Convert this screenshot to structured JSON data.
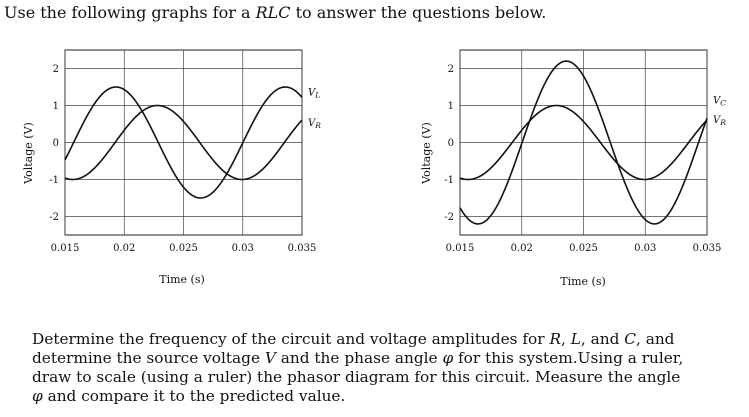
{
  "intro": {
    "before": "Use the following graphs for a ",
    "rlc": "RLC",
    "after": " to answer the questions below."
  },
  "chart_data": [
    {
      "type": "line",
      "title": "",
      "xlabel": "Time (s)",
      "ylabel": "Voltage (V)",
      "xlim": [
        0.015,
        0.035
      ],
      "ylim": [
        -2.5,
        2.5
      ],
      "xticks": [
        "0.015",
        "0.02",
        "0.025",
        "0.03",
        "0.035"
      ],
      "yticks": [
        "2",
        "1",
        "0",
        "-1",
        "-2"
      ],
      "grid": true,
      "series": [
        {
          "name": "VL",
          "amplitude": 1.5,
          "frequency": 70,
          "peak_time": 0.0193
        },
        {
          "name": "VR",
          "amplitude": 1.0,
          "frequency": 70,
          "peak_time": 0.0228
        }
      ]
    },
    {
      "type": "line",
      "title": "",
      "xlabel": "Time (s)",
      "ylabel": "Voltage (V)",
      "xlim": [
        0.015,
        0.035
      ],
      "ylim": [
        -2.5,
        2.5
      ],
      "xticks": [
        "0.015",
        "0.02",
        "0.025",
        "0.03",
        "0.035"
      ],
      "yticks": [
        "2",
        "1",
        "0",
        "-1",
        "-2"
      ],
      "grid": true,
      "series": [
        {
          "name": "VC",
          "amplitude": 2.2,
          "frequency": 70,
          "peak_time": 0.0236
        },
        {
          "name": "VR",
          "amplitude": 1.0,
          "frequency": 70,
          "peak_time": 0.0228
        }
      ]
    }
  ],
  "question": {
    "line1_a": "Determine the frequency of the circuit and voltage amplitudes for ",
    "R": "R",
    "sep1": ", ",
    "L": "L",
    "sep2": ", and ",
    "C": "C",
    "line1_b": ", and",
    "line2_a": "determine the source voltage ",
    "V": "V",
    "line2_b": " and the phase angle ",
    "phi": "φ",
    "line2_c": " for this system.Using a ruler,",
    "line3": "draw to scale (using a ruler) the phasor diagram for this circuit.  Measure the angle",
    "line4_b": " and compare it to the predicted value."
  }
}
